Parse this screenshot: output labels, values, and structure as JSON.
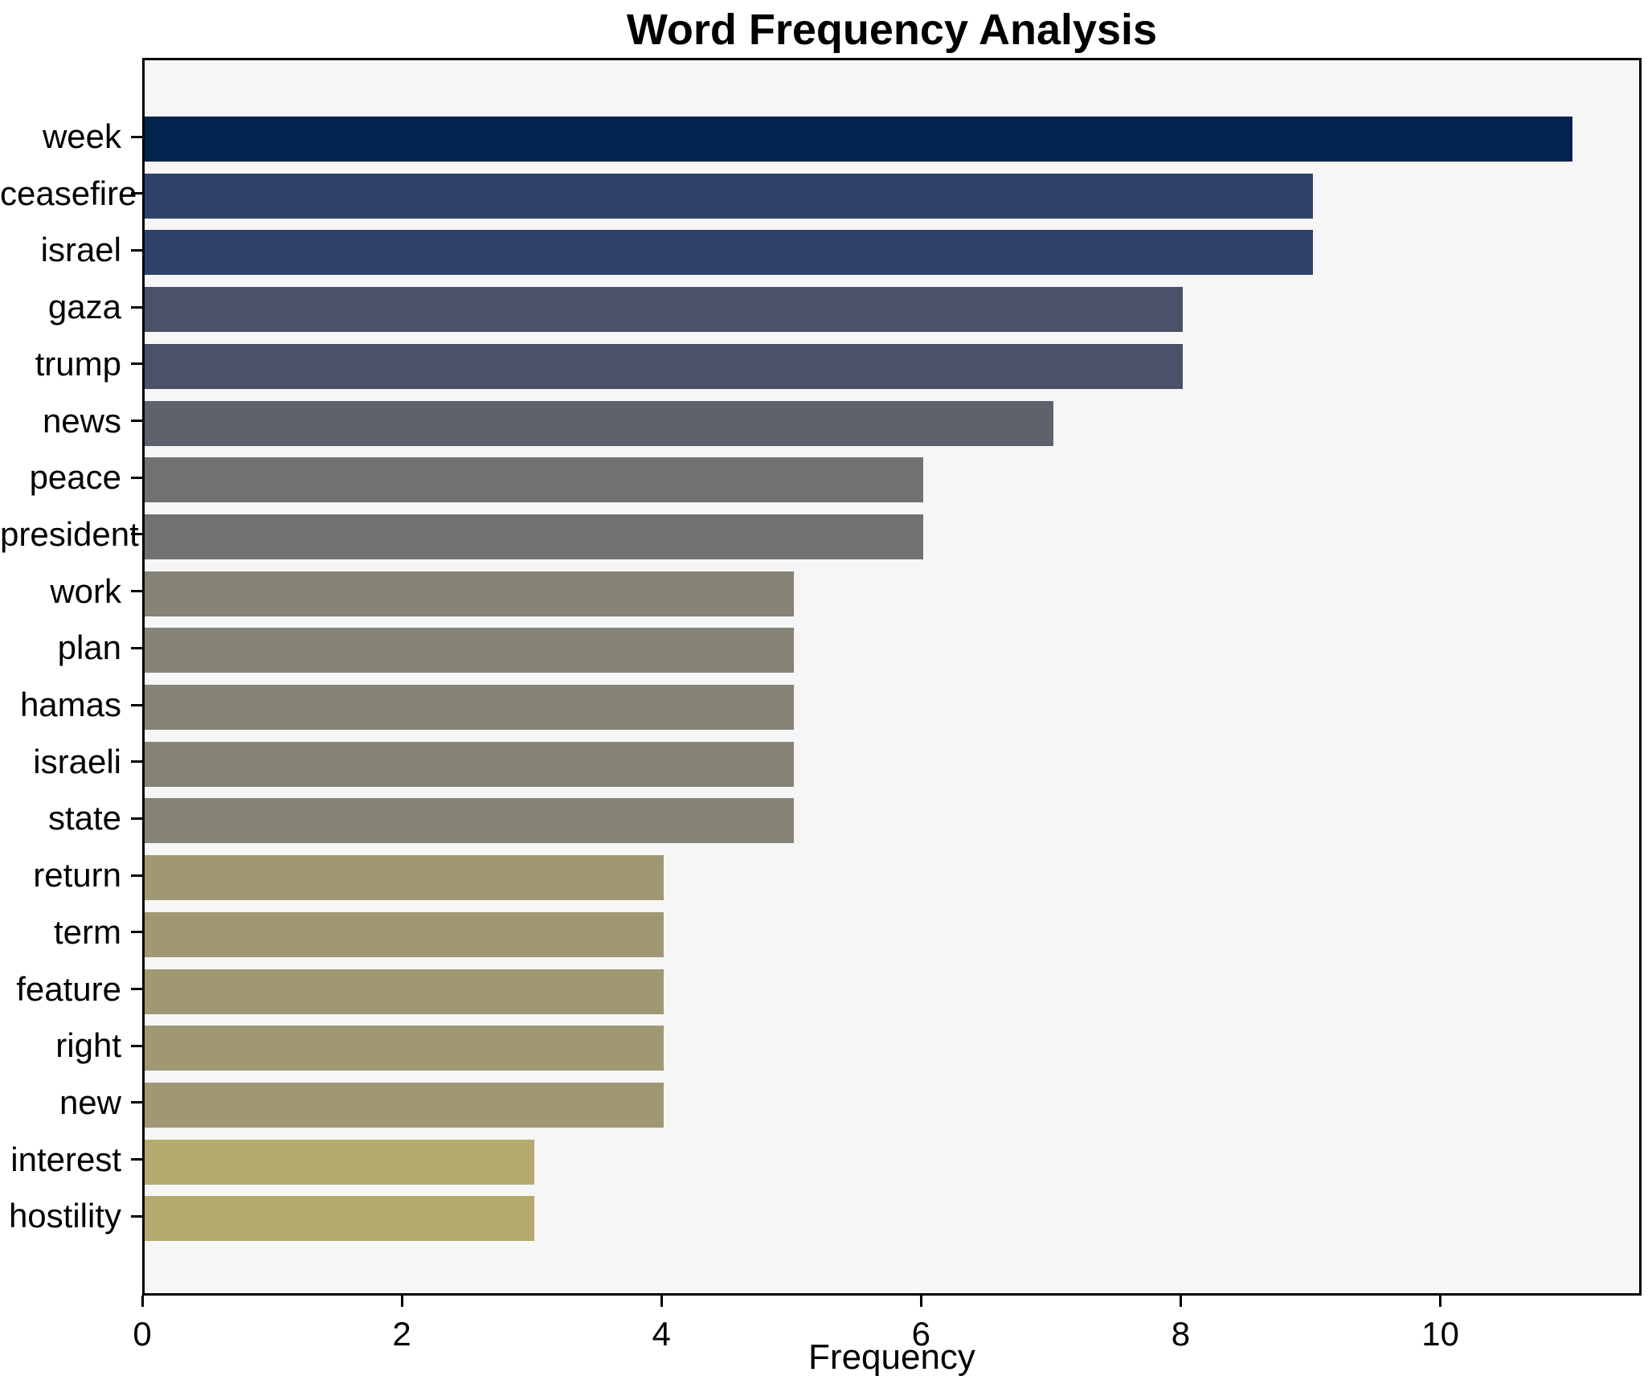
{
  "title": "Word Frequency Analysis",
  "chart_data": {
    "type": "bar",
    "orientation": "horizontal",
    "title": "Word Frequency Analysis",
    "xlabel": "Frequency",
    "ylabel": "",
    "categories": [
      "week",
      "ceasefire",
      "israel",
      "gaza",
      "trump",
      "news",
      "peace",
      "president",
      "work",
      "plan",
      "hamas",
      "israeli",
      "state",
      "return",
      "term",
      "feature",
      "right",
      "new",
      "interest",
      "hostility"
    ],
    "values": [
      11,
      9,
      9,
      8,
      8,
      7,
      6,
      6,
      5,
      5,
      5,
      5,
      5,
      4,
      4,
      4,
      4,
      4,
      3,
      3
    ],
    "bar_colors": [
      "#02234e",
      "#304269",
      "#304269",
      "#4a5168",
      "#4a5168",
      "#5e626d",
      "#717173",
      "#717173",
      "#868377",
      "#868377",
      "#868377",
      "#868377",
      "#868377",
      "#a09873",
      "#a09873",
      "#a09873",
      "#a09873",
      "#a09873",
      "#b4aa6e",
      "#b4aa6e"
    ],
    "xticks": [
      0,
      2,
      4,
      6,
      8,
      10
    ],
    "xlim": [
      0,
      11.55
    ],
    "grid": false,
    "legend_position": "none",
    "plot_bg": "#f6f6f7",
    "figure_bg": "#ffffff",
    "spine_color": "#000000",
    "text_color": "#000000"
  }
}
